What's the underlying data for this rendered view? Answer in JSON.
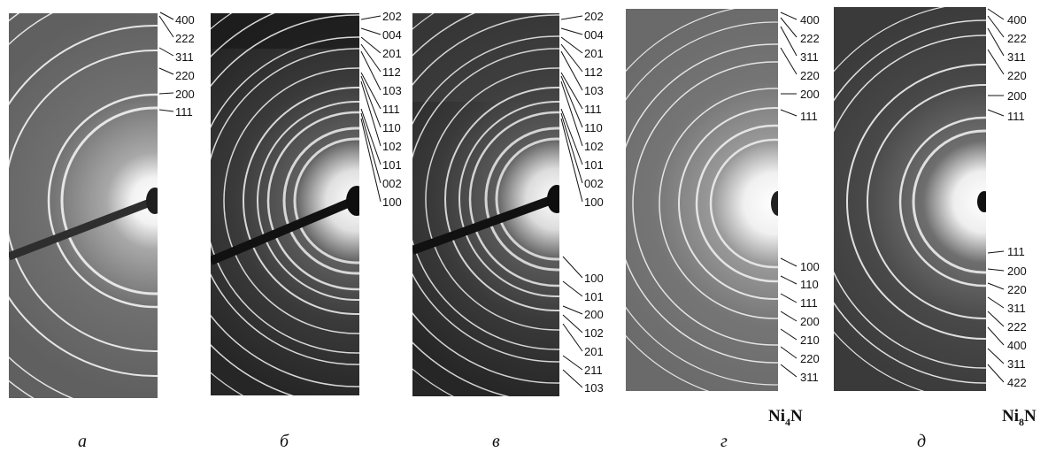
{
  "figure": {
    "panels": [
      {
        "id": "a",
        "caption": "а",
        "phase": "",
        "phase_base": "",
        "phase_sub": "",
        "phase_rest": "",
        "labels": [
          "400",
          "222",
          "311",
          "220",
          "200",
          "111"
        ],
        "labels_lower": []
      },
      {
        "id": "b",
        "caption": "б",
        "phase": "",
        "labels": [
          "202",
          "004",
          "201",
          "112",
          "103",
          "111",
          "110",
          "102",
          "101",
          "002",
          "100"
        ],
        "labels_lower": []
      },
      {
        "id": "v",
        "caption": "в",
        "phase": "",
        "labels": [
          "202",
          "004",
          "201",
          "112",
          "103",
          "111",
          "110",
          "102",
          "101",
          "002",
          "100"
        ],
        "labels_lower": [
          "100",
          "101",
          "200",
          "102",
          "201",
          "211",
          "103"
        ]
      },
      {
        "id": "g",
        "caption": "г",
        "phase": "Ni4N",
        "phase_base": "Ni",
        "phase_sub": "4",
        "phase_rest": "N",
        "labels": [
          "400",
          "222",
          "311",
          "220",
          "200",
          "111"
        ],
        "labels_lower": [
          "100",
          "110",
          "111",
          "200",
          "210",
          "220",
          "311"
        ]
      },
      {
        "id": "d",
        "caption": "д",
        "phase": "Ni8N",
        "phase_base": "Ni",
        "phase_sub": "8",
        "phase_rest": "N",
        "labels": [
          "400",
          "222",
          "311",
          "220",
          "200",
          "111"
        ],
        "labels_lower": [
          "111",
          "200",
          "220",
          "311",
          "222",
          "400",
          "311",
          "422"
        ]
      }
    ]
  }
}
